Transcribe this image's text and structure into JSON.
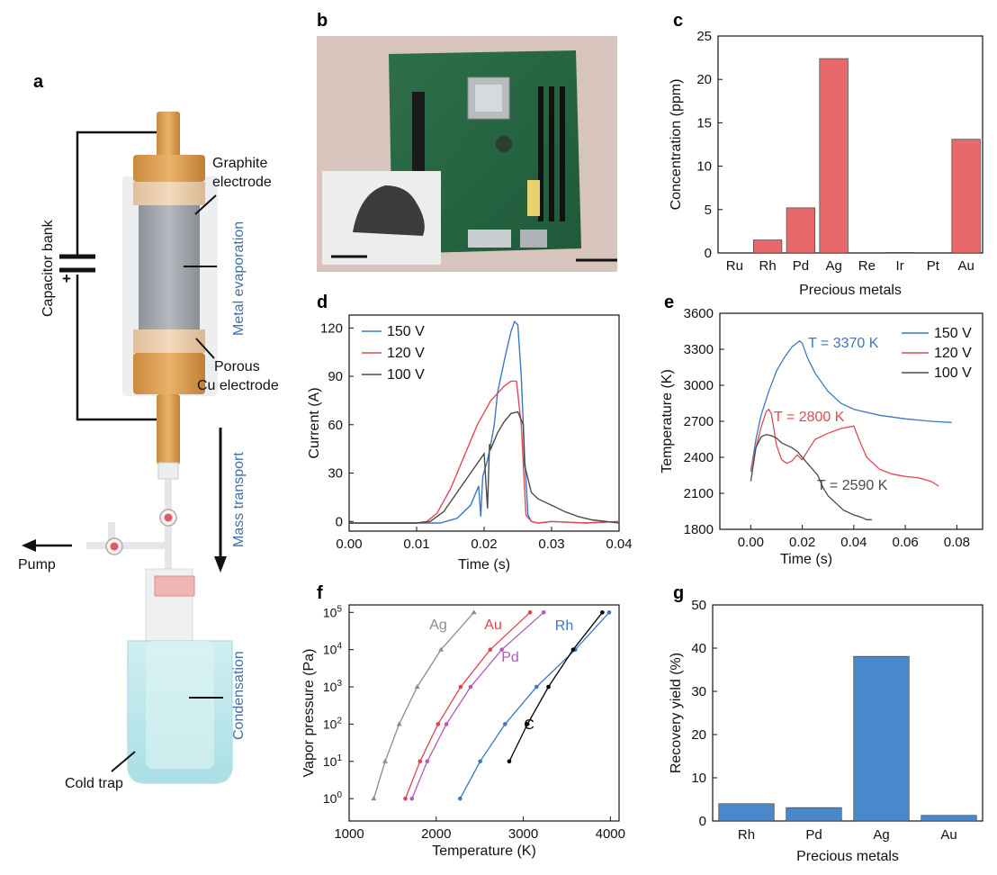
{
  "panels": {
    "a": "a",
    "b": "b",
    "c": "c",
    "d": "d",
    "e": "e",
    "f": "f",
    "g": "g"
  },
  "diagram": {
    "graphite_electrode": "Graphite\nelectrode",
    "metal_evaporation": "Metal evaporation",
    "capacitor_bank": "Capacitor bank",
    "plus": "+",
    "porous_cu_electrode": "Porous\nCu electrode",
    "mass_transport": "Mass transport",
    "pump": "Pump",
    "condensation": "Condensation",
    "cold_trap": "Cold trap"
  },
  "colors": {
    "s150": "#3a78c4",
    "s120": "#e04a52",
    "s100": "#4a4a4a",
    "ag": "#8c8c8c",
    "au": "#e0434f",
    "pd": "#b15ab8",
    "rh": "#3a78c4",
    "c": "#000000",
    "bar_red": "#e8696b",
    "bar_blue": "#4a88cc"
  },
  "chart_data": [
    {
      "panel": "c",
      "type": "bar",
      "categories": [
        "Ru",
        "Rh",
        "Pd",
        "Ag",
        "Re",
        "Ir",
        "Pt",
        "Au"
      ],
      "values": [
        0,
        1.5,
        5.2,
        22.4,
        0,
        0.05,
        0,
        13.1
      ],
      "xlabel": "Precious metals",
      "ylabel": "Concentration (ppm)",
      "ylim": [
        0,
        25
      ],
      "yticks": [
        "0",
        "5",
        "10",
        "15",
        "20",
        "25"
      ]
    },
    {
      "panel": "d",
      "type": "line",
      "xlabel": "Time (s)",
      "ylabel": "Current (A)",
      "xlim": [
        0,
        0.04
      ],
      "ylim": [
        -6,
        128
      ],
      "xticks": [
        "0.00",
        "0.01",
        "0.02",
        "0.03",
        "0.04"
      ],
      "yticks": [
        "0",
        "30",
        "60",
        "90",
        "120"
      ],
      "legend": "top-left",
      "series": [
        {
          "name": "150 V",
          "x": [
            0,
            0.005,
            0.01,
            0.0135,
            0.016,
            0.018,
            0.0192,
            0.0195,
            0.0198,
            0.0205,
            0.021,
            0.0215,
            0.022,
            0.023,
            0.024,
            0.0245,
            0.025,
            0.0255,
            0.026,
            0.0265,
            0.027,
            0.028,
            0.03,
            0.035,
            0.04
          ],
          "y": [
            -1,
            -1,
            -1,
            -1,
            2,
            10,
            22,
            3,
            28,
            38,
            48,
            60,
            80,
            100,
            118,
            124,
            122,
            90,
            40,
            4,
            0,
            -1,
            0,
            -1,
            0
          ]
        },
        {
          "name": "120 V",
          "x": [
            0,
            0.005,
            0.01,
            0.0115,
            0.013,
            0.015,
            0.017,
            0.019,
            0.021,
            0.023,
            0.024,
            0.0248,
            0.0255,
            0.026,
            0.0262,
            0.027,
            0.028,
            0.03,
            0.035,
            0.04
          ],
          "y": [
            -1,
            -1,
            -1,
            0,
            5,
            20,
            40,
            60,
            75,
            84,
            87,
            87,
            60,
            20,
            4,
            0,
            -1,
            0,
            -1,
            0
          ]
        },
        {
          "name": "100 V",
          "x": [
            0,
            0.005,
            0.01,
            0.012,
            0.014,
            0.016,
            0.018,
            0.02,
            0.0205,
            0.0208,
            0.021,
            0.022,
            0.023,
            0.024,
            0.025,
            0.0258,
            0.026,
            0.027,
            0.028,
            0.03,
            0.032,
            0.034,
            0.036,
            0.04
          ],
          "y": [
            -1,
            -1,
            -1,
            0,
            6,
            18,
            30,
            42,
            8,
            48,
            45,
            55,
            62,
            67,
            68,
            60,
            35,
            18,
            14,
            10,
            6,
            3,
            1,
            -1
          ]
        }
      ]
    },
    {
      "panel": "e",
      "type": "line",
      "xlabel": "Time (s)",
      "ylabel": "Temperature (K)",
      "xlim": [
        -0.012,
        0.09
      ],
      "ylim": [
        1800,
        3600
      ],
      "xticks": [
        "0.00",
        "0.02",
        "0.04",
        "0.06",
        "0.08"
      ],
      "yticks": [
        "1800",
        "2100",
        "2400",
        "2700",
        "3000",
        "3300",
        "3600"
      ],
      "legend": "top-right",
      "annotations": [
        "T = 3370 K",
        "T = 2800 K",
        "T = 2590 K"
      ],
      "series": [
        {
          "name": "150 V",
          "x": [
            0,
            0.002,
            0.004,
            0.007,
            0.01,
            0.013,
            0.016,
            0.019,
            0.02,
            0.022,
            0.025,
            0.03,
            0.035,
            0.04,
            0.05,
            0.06,
            0.07,
            0.078
          ],
          "y": [
            2280,
            2550,
            2750,
            2950,
            3120,
            3230,
            3320,
            3370,
            3350,
            3230,
            3100,
            2950,
            2850,
            2800,
            2750,
            2720,
            2700,
            2690
          ]
        },
        {
          "name": "120 V",
          "x": [
            0,
            0.002,
            0.004,
            0.006,
            0.007,
            0.008,
            0.01,
            0.012,
            0.014,
            0.016,
            0.018,
            0.02,
            0.022,
            0.025,
            0.03,
            0.035,
            0.04,
            0.042,
            0.045,
            0.05,
            0.055,
            0.06,
            0.065,
            0.07,
            0.073
          ],
          "y": [
            2300,
            2480,
            2650,
            2780,
            2800,
            2760,
            2500,
            2380,
            2350,
            2370,
            2420,
            2380,
            2450,
            2550,
            2600,
            2640,
            2660,
            2550,
            2400,
            2300,
            2260,
            2240,
            2230,
            2200,
            2160
          ]
        },
        {
          "name": "100 V",
          "x": [
            0,
            0.002,
            0.004,
            0.006,
            0.008,
            0.01,
            0.012,
            0.014,
            0.016,
            0.018,
            0.02,
            0.022,
            0.024,
            0.026,
            0.028,
            0.03,
            0.033,
            0.036,
            0.04,
            0.043,
            0.045,
            0.047
          ],
          "y": [
            2200,
            2480,
            2570,
            2590,
            2580,
            2560,
            2520,
            2500,
            2480,
            2450,
            2400,
            2350,
            2300,
            2250,
            2150,
            2080,
            2020,
            1960,
            1920,
            1900,
            1880,
            1880
          ]
        }
      ]
    },
    {
      "panel": "f",
      "type": "line",
      "xlabel": "Temperature (K)",
      "ylabel": "Vapor pressure (Pa)",
      "xlim": [
        1000,
        4100
      ],
      "ylim_log10": [
        -0.6,
        5.2
      ],
      "xticks": [
        "1000",
        "2000",
        "3000",
        "4000"
      ],
      "yticks_exp": [
        "0",
        "1",
        "2",
        "3",
        "4",
        "5"
      ],
      "series": [
        {
          "name": "Ag",
          "x": [
            1283,
            1413,
            1575,
            1782,
            2055,
            2433
          ],
          "log10y": [
            0,
            1,
            2,
            3,
            4,
            5
          ]
        },
        {
          "name": "Au",
          "x": [
            1646,
            1814,
            2021,
            2281,
            2620,
            3078
          ],
          "log10y": [
            0,
            1,
            2,
            3,
            4,
            5
          ]
        },
        {
          "name": "Pd",
          "x": [
            1721,
            1897,
            2117,
            2395,
            2753,
            3234
          ],
          "log10y": [
            0,
            1,
            2,
            3,
            4,
            5
          ]
        },
        {
          "name": "Rh",
          "x": [
            2274,
            2505,
            2791,
            3152,
            3597,
            3986
          ],
          "log10y": [
            0,
            1,
            2,
            3,
            4,
            5
          ]
        },
        {
          "name": "C",
          "x": [
            2839,
            3048,
            3289,
            3572,
            3908
          ],
          "log10y": [
            1,
            2,
            3,
            4,
            5
          ]
        }
      ]
    },
    {
      "panel": "g",
      "type": "bar",
      "categories": [
        "Rh",
        "Pd",
        "Ag",
        "Au"
      ],
      "values": [
        4.0,
        3.1,
        38.1,
        1.3
      ],
      "xlabel": "Precious metals",
      "ylabel": "Recovery yield (%)",
      "ylim": [
        0,
        50
      ],
      "yticks": [
        "0",
        "10",
        "20",
        "30",
        "40",
        "50"
      ]
    }
  ]
}
